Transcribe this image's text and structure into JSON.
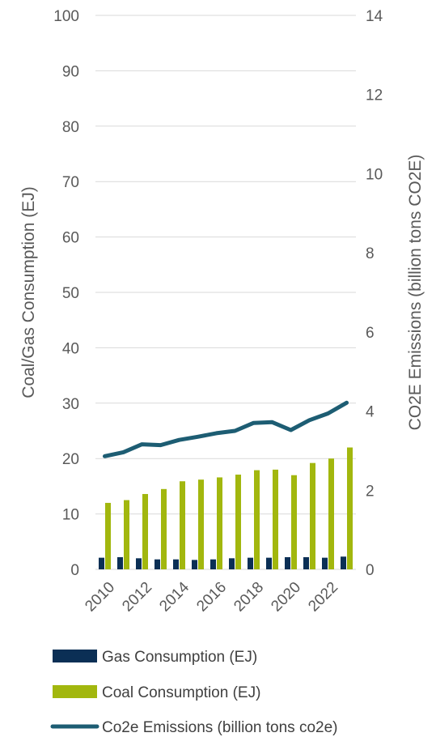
{
  "chart_data": {
    "type": "bar",
    "categories": [
      2010,
      2011,
      2012,
      2013,
      2014,
      2015,
      2016,
      2017,
      2018,
      2019,
      2020,
      2021,
      2022,
      2023
    ],
    "x_tick_labels": [
      "2010",
      "2012",
      "2014",
      "2016",
      "2018",
      "2020",
      "2022"
    ],
    "series": [
      {
        "name": "Gas Consumption (EJ)",
        "kind": "bar",
        "axis": "left",
        "color": "#0b2f55",
        "values": [
          2.1,
          2.2,
          2.0,
          1.8,
          1.8,
          1.7,
          1.8,
          2.0,
          2.1,
          2.1,
          2.2,
          2.2,
          2.1,
          2.3
        ]
      },
      {
        "name": "Coal Consumption (EJ)",
        "kind": "bar",
        "axis": "left",
        "color": "#a2b70e",
        "values": [
          12.0,
          12.5,
          13.6,
          14.5,
          15.9,
          16.2,
          16.6,
          17.1,
          17.9,
          18.0,
          17.0,
          19.2,
          20.0,
          22.0
        ]
      },
      {
        "name": "Co2e Emissions (billion tons co2e)",
        "kind": "line",
        "axis": "right",
        "color": "#1d5d73",
        "values": [
          2.86,
          2.96,
          3.16,
          3.14,
          3.27,
          3.35,
          3.44,
          3.5,
          3.7,
          3.72,
          3.52,
          3.77,
          3.94,
          4.21
        ]
      }
    ],
    "y_left": {
      "label": "Coal/Gas Consumption (EJ)",
      "min": 0,
      "max": 100,
      "ticks": [
        "0",
        "10",
        "20",
        "30",
        "40",
        "50",
        "60",
        "70",
        "80",
        "90",
        "100"
      ]
    },
    "y_right": {
      "label": "CO2E Emissions (billion tons CO2E)",
      "min": 0,
      "max": 14,
      "ticks": [
        "0",
        "2",
        "4",
        "6",
        "8",
        "10",
        "12",
        "14"
      ]
    },
    "grid": true,
    "legend": "bottom"
  }
}
